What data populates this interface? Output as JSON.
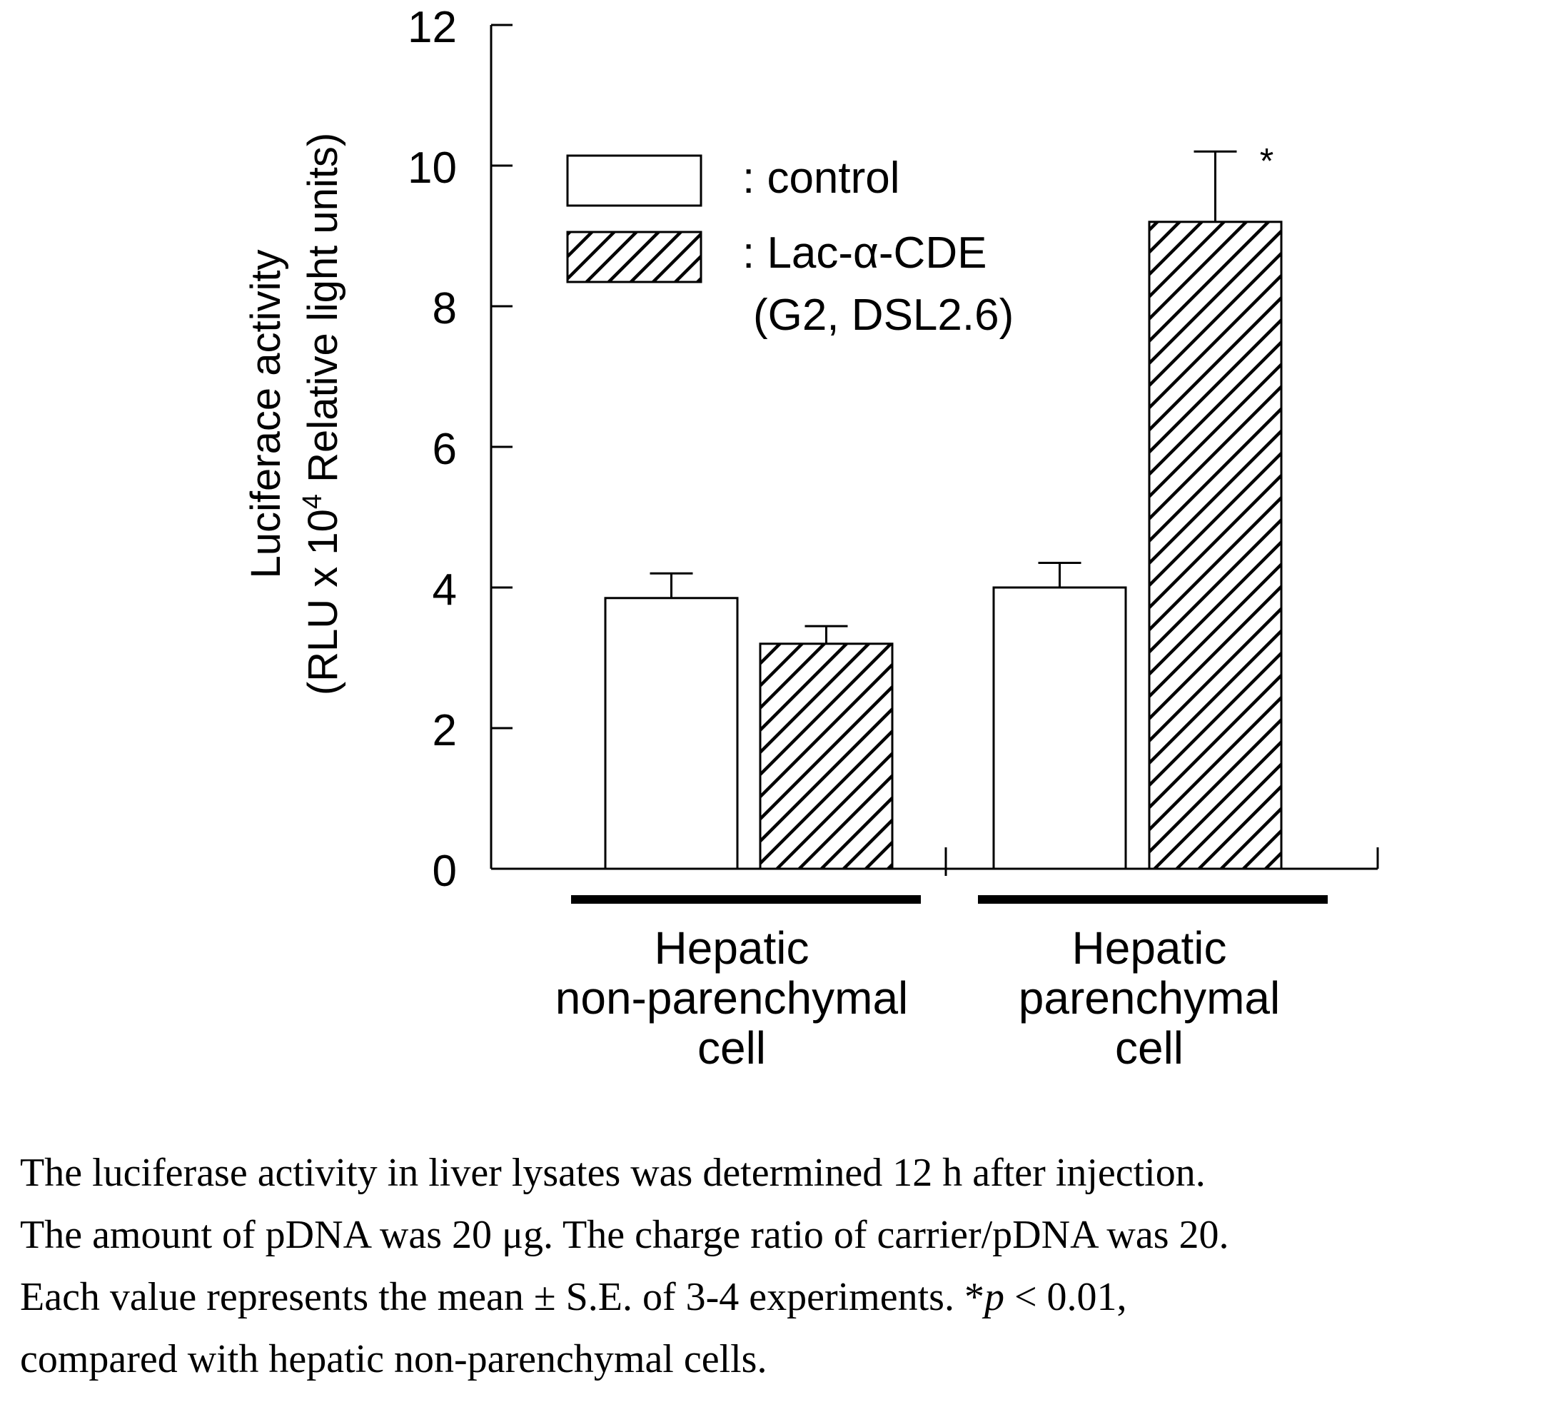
{
  "chart_data": {
    "type": "bar",
    "ylabel_line1": "Luciferace activity",
    "ylabel_line2_pre": "(RLU x 10",
    "ylabel_line2_sup": "4",
    "ylabel_line2_post": " Relative light units)",
    "ylim": [
      0,
      12
    ],
    "yticks": [
      "0",
      "2",
      "4",
      "6",
      "8",
      "10",
      "12"
    ],
    "groups": [
      {
        "label_lines": [
          "Hepatic",
          "non-parenchymal",
          "cell"
        ]
      },
      {
        "label_lines": [
          "Hepatic",
          "parenchymal",
          "cell"
        ]
      }
    ],
    "series": [
      {
        "name": "control",
        "fill": "white",
        "values": [
          3.85,
          4.0
        ],
        "errors": [
          0.35,
          0.35
        ]
      },
      {
        "name": "Lac-α-CDE",
        "name_line2": "(G2, DSL2.6)",
        "fill": "hatch",
        "values": [
          3.2,
          9.2
        ],
        "errors": [
          0.25,
          1.0
        ]
      }
    ],
    "legend_prefix": ": ",
    "legend_position": "top-left",
    "annotations": [
      {
        "text": "*",
        "group": 1,
        "series": 1
      }
    ],
    "grid": false
  },
  "caption": {
    "line1": "The luciferase activity in liver lysates was determined 12 h after injection.",
    "line2": "The amount of pDNA was 20 μg. The charge ratio of carrier/pDNA was 20.",
    "line3": "Each value represents the mean ± S.E. of 3-4 experiments. *p < 0.01,",
    "line4": "compared with hepatic non-parenchymal cells."
  }
}
